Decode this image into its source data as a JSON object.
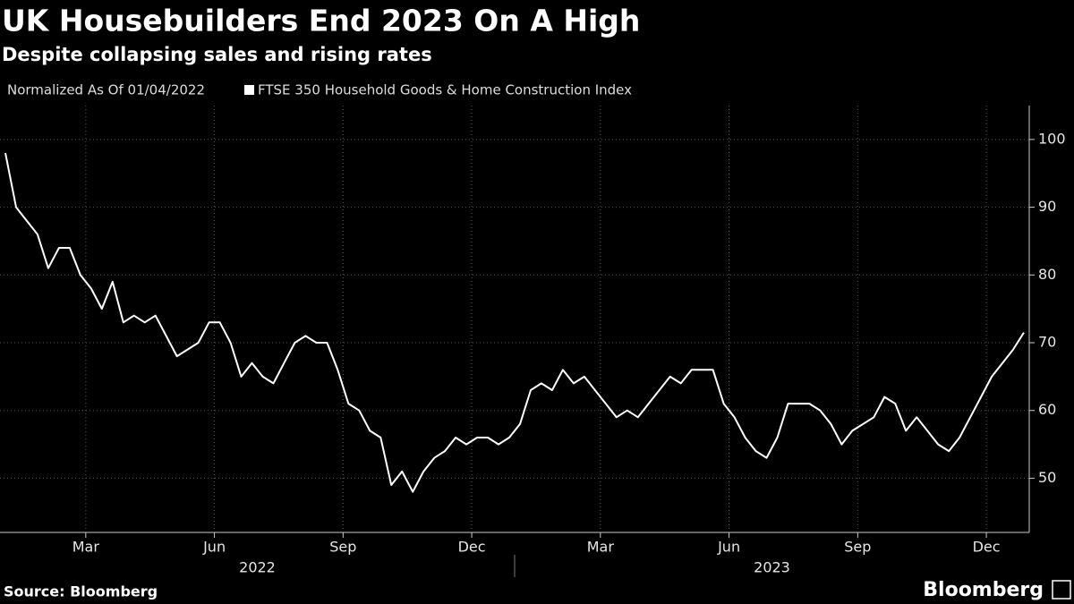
{
  "chart_data": {
    "type": "line",
    "title": "UK Housebuilders End 2023 On A High",
    "subtitle": "Despite collapsing sales and rising rates",
    "note": "Normalized As Of 01/04/2022",
    "source": "Source: Bloomberg",
    "brand": "Bloomberg",
    "x": [
      "2022-01",
      "2022-01",
      "2022-01",
      "2022-01",
      "2022-02",
      "2022-02",
      "2022-02",
      "2022-02",
      "2022-03",
      "2022-03",
      "2022-03",
      "2022-03",
      "2022-04",
      "2022-04",
      "2022-04",
      "2022-04",
      "2022-05",
      "2022-05",
      "2022-05",
      "2022-05",
      "2022-06",
      "2022-06",
      "2022-06",
      "2022-06",
      "2022-07",
      "2022-07",
      "2022-07",
      "2022-07",
      "2022-08",
      "2022-08",
      "2022-08",
      "2022-08",
      "2022-09",
      "2022-09",
      "2022-09",
      "2022-09",
      "2022-10",
      "2022-10",
      "2022-10",
      "2022-10",
      "2022-11",
      "2022-11",
      "2022-11",
      "2022-11",
      "2022-12",
      "2022-12",
      "2022-12",
      "2022-12",
      "2023-01",
      "2023-01",
      "2023-01",
      "2023-01",
      "2023-02",
      "2023-02",
      "2023-02",
      "2023-02",
      "2023-03",
      "2023-03",
      "2023-03",
      "2023-03",
      "2023-04",
      "2023-04",
      "2023-04",
      "2023-04",
      "2023-05",
      "2023-05",
      "2023-05",
      "2023-05",
      "2023-06",
      "2023-06",
      "2023-06",
      "2023-06",
      "2023-07",
      "2023-07",
      "2023-07",
      "2023-07",
      "2023-08",
      "2023-08",
      "2023-08",
      "2023-08",
      "2023-09",
      "2023-09",
      "2023-09",
      "2023-09",
      "2023-10",
      "2023-10",
      "2023-10",
      "2023-10",
      "2023-11",
      "2023-11",
      "2023-11",
      "2023-11",
      "2023-12",
      "2023-12",
      "2023-12",
      "2023-12"
    ],
    "series": [
      {
        "name": "FTSE 350 Household Goods & Home Construction Index",
        "color": "#ffffff",
        "values": [
          98,
          90,
          88,
          86,
          81,
          84,
          84,
          80,
          78,
          75,
          79,
          73,
          74,
          73,
          74,
          71,
          68,
          69,
          70,
          73,
          73,
          70,
          65,
          67,
          65,
          64,
          67,
          70,
          71,
          70,
          70,
          66,
          61,
          60,
          57,
          56,
          49,
          51,
          48,
          51,
          53,
          54,
          56,
          55,
          56,
          56,
          55,
          56,
          58,
          63,
          64,
          63,
          66,
          64,
          65,
          63,
          61,
          59,
          60,
          59,
          61,
          63,
          65,
          64,
          66,
          66,
          66,
          61,
          59,
          56,
          54,
          53,
          56,
          61,
          61,
          61,
          60,
          58,
          55,
          57,
          58,
          59,
          62,
          61,
          57,
          59,
          57,
          55,
          54,
          56,
          59,
          62,
          65,
          67,
          69,
          71.5
        ]
      }
    ],
    "xlim": [
      "2022-01",
      "2023-12"
    ],
    "xticks": [
      {
        "value": "2022-03",
        "label": "Mar"
      },
      {
        "value": "2022-06",
        "label": "Jun"
      },
      {
        "value": "2022-09",
        "label": "Sep"
      },
      {
        "value": "2022-12",
        "label": "Dec"
      },
      {
        "value": "2023-03",
        "label": "Mar"
      },
      {
        "value": "2023-06",
        "label": "Jun"
      },
      {
        "value": "2023-09",
        "label": "Sep"
      },
      {
        "value": "2023-12",
        "label": "Dec"
      }
    ],
    "year_labels": [
      "2022",
      "2023"
    ],
    "ylim": [
      42,
      105
    ],
    "yticks": [
      50,
      60,
      70,
      80,
      90,
      100
    ],
    "grid": true
  }
}
